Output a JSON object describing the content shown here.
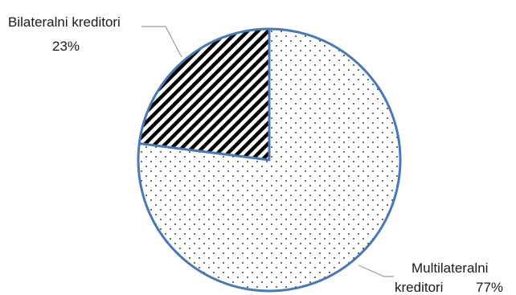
{
  "chart_data": {
    "type": "pie",
    "title": "",
    "slices": [
      {
        "name": "Bilateralni kreditori",
        "value": 23,
        "label_name": "Bilateralni kreditori",
        "label_value": "23%",
        "pattern": "diagonal-hatch"
      },
      {
        "name": "Multilateralni kreditori",
        "value": 77,
        "label_name_line1": "Multilateralni",
        "label_name_line2": "kreditori",
        "label_value": "77%",
        "pattern": "dotted"
      }
    ],
    "colors": {
      "outline": "#4a78b5",
      "leader": "#9a9a9a",
      "hatch": "#000000",
      "dots": "#000000"
    }
  }
}
